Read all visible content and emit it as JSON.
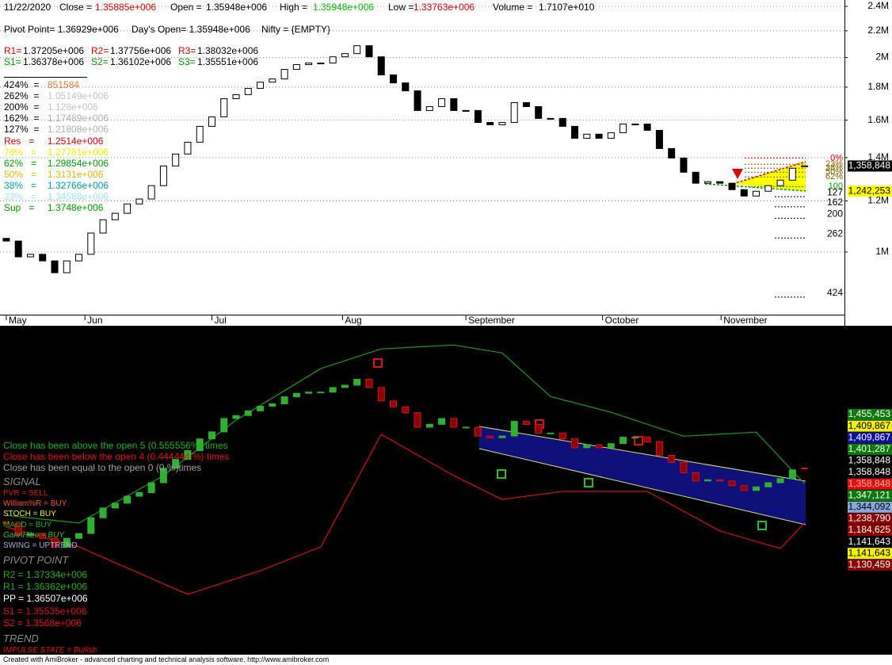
{
  "header": {
    "date": "11/22/2020",
    "quote": [
      {
        "label": "Close =",
        "value": "1.35885e+006",
        "color": "#e00000"
      },
      {
        "label": "Open =",
        "value": "1.35948e+006",
        "color": "#000000"
      },
      {
        "label": "High =",
        "value": "1.35948e+006",
        "color": "#00c000"
      },
      {
        "label": "Low =",
        "value": "1.33763e+006",
        "color": "#e00000"
      },
      {
        "label": "Volume =",
        "value": "1.7107e+010",
        "color": "#000000"
      }
    ],
    "pivot_row": [
      "Pivot Point= 1.36929e+006",
      "Day's Open= 1.35948e+006",
      "Nifty = {EMPTY}"
    ],
    "resistance": [
      {
        "label": "R1=",
        "value": "1.37205e+006"
      },
      {
        "label": "R2=",
        "value": "1.37756e+006"
      },
      {
        "label": "R3=",
        "value": "1.38032e+006"
      }
    ],
    "support": [
      {
        "label": "S1=",
        "value": "1.36378e+006"
      },
      {
        "label": "S2=",
        "value": "1.36102e+006"
      },
      {
        "label": "S3=",
        "value": "1.35551e+006"
      }
    ],
    "resistance_color": "#e00000",
    "support_color": "#00a000"
  },
  "chart_data": [
    {
      "type": "candlestick",
      "open": [
        1050000,
        1040000,
        983000,
        992000,
        969000,
        929000,
        969000,
        992000,
        1070000,
        1122000,
        1148000,
        1187000,
        1208000,
        1267000,
        1359000,
        1418000,
        1479000,
        1565000,
        1619000,
        1727000,
        1752000,
        1792000,
        1832000,
        1853000,
        1917000,
        1950000,
        1961000,
        1961000,
        2005000,
        2028000,
        2086000,
        2005000,
        1880000,
        1827000,
        1776000,
        1656000,
        1679000,
        1727000,
        1656000,
        1656000,
        1587000,
        1574000,
        1587000,
        1703000,
        1679000,
        1610000,
        1610000,
        1565000,
        1500000,
        1522000,
        1500000,
        1530000,
        1578000,
        1578000,
        1543000,
        1446000,
        1398000,
        1329000,
        1278000,
        1285000,
        1278000,
        1249000,
        1221000,
        1242000,
        1267000,
        1292000,
        1359480
      ],
      "close": [
        1040000,
        983000,
        992000,
        969000,
        929000,
        969000,
        992000,
        1070000,
        1122000,
        1148000,
        1187000,
        1208000,
        1267000,
        1359000,
        1418000,
        1479000,
        1565000,
        1619000,
        1727000,
        1752000,
        1792000,
        1832000,
        1853000,
        1917000,
        1950000,
        1961000,
        1961000,
        2005000,
        2028000,
        2086000,
        2005000,
        1880000,
        1827000,
        1776000,
        1656000,
        1679000,
        1727000,
        1656000,
        1656000,
        1587000,
        1574000,
        1587000,
        1703000,
        1679000,
        1610000,
        1610000,
        1565000,
        1500000,
        1522000,
        1500000,
        1530000,
        1578000,
        1578000,
        1543000,
        1446000,
        1398000,
        1329000,
        1278000,
        1285000,
        1278000,
        1249000,
        1221000,
        1242000,
        1267000,
        1292000,
        1348000,
        1358850
      ],
      "up_color": "#ffffff",
      "down_color": "#000000",
      "xlim": [
        -0.52,
        69.3
      ],
      "xticks": [
        {
          "value": 0,
          "label": "May"
        },
        {
          "value": 6.5,
          "label": "Jun"
        },
        {
          "value": 17.0,
          "label": "Jul"
        },
        {
          "value": 27.8,
          "label": "Aug"
        },
        {
          "value": 38.0,
          "label": "September"
        },
        {
          "value": 49.3,
          "label": "October"
        },
        {
          "value": 59.1,
          "label": "November"
        }
      ],
      "ylim": [
        800000,
        2455000
      ],
      "log_scale": true,
      "grid": true,
      "yticks": [
        {
          "value": 1000000,
          "label": "1M"
        },
        {
          "value": 1200000,
          "label": "1.2M"
        },
        {
          "value": 1400000,
          "label": "1.4M"
        },
        {
          "value": 1600000,
          "label": "1.6M"
        },
        {
          "value": 1800000,
          "label": "1.8M"
        },
        {
          "value": 2000000,
          "label": "2M"
        },
        {
          "value": 2200000,
          "label": "2.2M"
        },
        {
          "value": 2400000,
          "label": "2.4M"
        }
      ],
      "fib": {
        "names": [
          "424%  =",
          "262%  =",
          "200%  =",
          "162%  =",
          "127%  =",
          "Res   =",
          "78%   =",
          "62%   =",
          "50%   =",
          "38%   =",
          "23%   =",
          "Sup   ="
        ],
        "values": [
          851584,
          1051490,
          1128000,
          1174890,
          1218080,
          1251400,
          1277810,
          1298540,
          1313100,
          1327660,
          1345880,
          1374800
        ],
        "value_labels": [
          "851584",
          "1.05149e+006",
          "1.128e+006",
          "1.17489e+006",
          "1.21808e+006",
          "1.2514e+006",
          "1.27781e+006",
          "1.29854e+006",
          "1.3131e+006",
          "1.32766e+006",
          "1.34588e+006",
          "1.3748e+006"
        ],
        "colors": [
          "#e8743b",
          "#c4c4c4",
          "#c4c4c4",
          "#b0b0b0",
          "#b0b0b0",
          "#e00000",
          "#f0f000",
          "#00a000",
          "#d8c000",
          "#00a0a0",
          "#a0e4f0",
          "#00a000"
        ],
        "tags": [
          "424",
          "262",
          "200",
          "162",
          "127",
          null,
          null,
          null,
          null,
          null,
          null,
          null
        ]
      },
      "retracement": {
        "labels": [
          "0%",
          "23%",
          "38%",
          "50%",
          "62%",
          "100"
        ],
        "values": [
          1398000,
          1367000,
          1348000,
          1329000,
          1307000,
          1263000
        ],
        "colors": [
          "#e00000",
          "#a06000",
          "#806000",
          "#806000",
          "#806000",
          "#00a000"
        ]
      },
      "price_boxes": {
        "values": [
          1358848,
          1242253
        ],
        "value_labels": [
          "1,358,848",
          "1,242,253"
        ],
        "backgrounds": [
          "#000000",
          "#ffff00"
        ],
        "text_colors": [
          "#ffffff",
          "#000000"
        ]
      }
    },
    {
      "type": "bands",
      "xlim": [
        -0.52,
        69.3
      ],
      "ylim": [
        553000,
        2690000
      ],
      "log_scale": true,
      "up_color": "#30b030",
      "down_color": "#8b0000",
      "series": [
        {
          "color": "#1a9a1a",
          "x": [
            0,
            6,
            13,
            19,
            26,
            31,
            37,
            41,
            45,
            50,
            56,
            62,
            66
          ],
          "values": [
            1083000,
            1043000,
            1311000,
            1714000,
            2196000,
            2415000,
            2461000,
            2369000,
            1920000,
            1779000,
            1586000,
            1617000,
            1262000
          ]
        },
        {
          "color": "#d01010",
          "x": [
            0,
            6,
            15,
            21,
            26,
            31,
            37,
            41,
            46,
            53,
            59,
            64,
            66
          ],
          "values": [
            1023000,
            930000,
            740000,
            829000,
            930000,
            1600000,
            1311000,
            1169000,
            1215000,
            1215000,
            1004000,
            923000,
            1043000
          ]
        }
      ],
      "price_labels": {
        "values": [
          1455453,
          1409867,
          1409867,
          1401287,
          1358848,
          1358848,
          1358848,
          1347121,
          1344092,
          1238790,
          1184625,
          1141643,
          1141643,
          1130459
        ],
        "value_labels": [
          "1,455,453",
          "1,409,867",
          "1,409,867",
          "1,401,287",
          "1,358,848",
          "1,358,848",
          "1,358,848",
          "1,347,121",
          "1,344,092",
          "1,238,790",
          "1,184,625",
          "1,141,643",
          "1,141,643",
          "1,130,459"
        ],
        "backgrounds": [
          "#0a7a0a",
          "#f0f000",
          "#1010a0",
          "#0a7a0a",
          "#000000",
          "#000000",
          "#e01010",
          "#0a7a0a",
          "#87a8d8",
          "#8b0000",
          "#8b0000",
          "#000000",
          "#f0f000",
          "#8b0000"
        ],
        "text_colors": [
          "#ffffff",
          "#000000",
          "#ffffff",
          "#ffffff",
          "#ffffff",
          "#ffffff",
          "#ffb0b0",
          "#ffffff",
          "#000000",
          "#ffffff",
          "#ffffff",
          "#ffffff",
          "#000000",
          "#ffffff"
        ]
      }
    }
  ],
  "lower_text": {
    "stats": [
      {
        "text": "Close has been above the open 5 (0.555556%) times",
        "color": "#18b018"
      },
      {
        "text": "Close has been below the open 4 (0.444444 %) times",
        "color": "#e01010"
      },
      {
        "text": "Close has been equal to the open 0 (0 %)times",
        "color": "#a0a0a0"
      }
    ],
    "signal_title": "SIGNAL",
    "signals": [
      {
        "text": "PVR = SELL",
        "color": "#e01010"
      },
      {
        "text": "William%R = BUY",
        "color": "#ff5020"
      },
      {
        "text": "STOCH = BUY",
        "color": "#f0f000"
      },
      {
        "text": "MACD = BUY",
        "color": "#18b018"
      },
      {
        "text": "GannHiLo = BUY",
        "color": "#30c030"
      },
      {
        "text": "SWING = UPTREND",
        "color": "#a0b4e0"
      }
    ],
    "pivot_title": "PIVOT POINT",
    "pivots": [
      {
        "text": "R2 = 1.37334e+006",
        "color": "#18b018"
      },
      {
        "text": "R1 = 1.36362e+006",
        "color": "#18b018"
      },
      {
        "text": "PP = 1.36507e+006",
        "color": "#ffffff"
      },
      {
        "text": "S1 = 1.35535e+006",
        "color": "#e01010"
      },
      {
        "text": "S2 = 1.3568e+006",
        "color": "#e01010"
      }
    ],
    "trend_title": "TREND",
    "trend": {
      "text": "IMPULSE STATE = Bullish",
      "color": "#e01010"
    }
  },
  "footer": "Created with AmiBroker - advanced charting and technical analysis software. http://www.amibroker.com"
}
